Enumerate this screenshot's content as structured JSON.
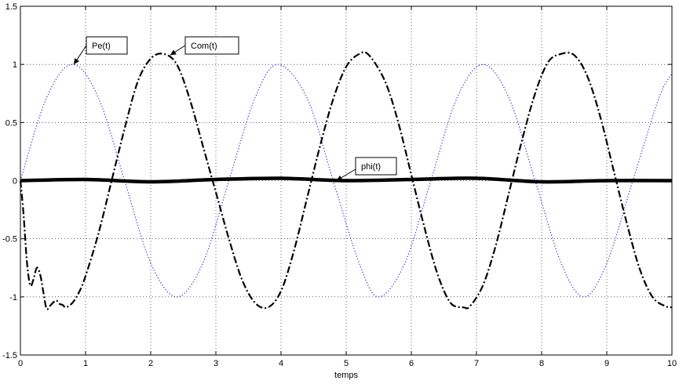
{
  "chart_data": {
    "type": "line",
    "xlabel": "temps",
    "ylabel": "",
    "title": "",
    "xlim": [
      0,
      10
    ],
    "ylim": [
      -1.5,
      1.5
    ],
    "grid": true,
    "xticks": [
      "0",
      "1",
      "2",
      "3",
      "4",
      "5",
      "6",
      "7",
      "8",
      "9",
      "10"
    ],
    "yticks": [
      "-1.5",
      "-1",
      "-0.5",
      "0",
      "0.5",
      "1",
      "1.5"
    ],
    "series": [
      {
        "name": "Pe(t)",
        "style": "dotted",
        "color": "#2a2ad4",
        "x": [
          0,
          0.4,
          0.8,
          1.2,
          1.6,
          2.0,
          2.4,
          2.8,
          3.2,
          3.6,
          3.95,
          4.4,
          4.8,
          5.2,
          5.5,
          5.9,
          6.3,
          6.7,
          7.1,
          7.5,
          7.9,
          8.3,
          8.65,
          9.0,
          9.4,
          9.8,
          10.0
        ],
        "values": [
          0.0,
          0.71,
          1.0,
          0.71,
          0.0,
          -0.71,
          -1.0,
          -0.71,
          0.0,
          0.71,
          1.0,
          0.71,
          0.0,
          -0.71,
          -1.0,
          -0.71,
          0.0,
          0.71,
          1.0,
          0.71,
          0.0,
          -0.71,
          -1.0,
          -0.71,
          0.0,
          0.71,
          0.92
        ]
      },
      {
        "name": "Com(t)",
        "style": "dash-dot",
        "color": "#000000",
        "x": [
          0.0,
          0.05,
          0.1,
          0.15,
          0.2,
          0.25,
          0.3,
          0.35,
          0.4,
          0.45,
          0.5,
          0.55,
          0.6,
          0.65,
          0.7,
          0.8,
          0.9,
          1.0,
          1.2,
          1.4,
          1.6,
          1.8,
          2.0,
          2.2,
          2.4,
          2.6,
          2.8,
          3.0,
          3.2,
          3.4,
          3.6,
          3.8,
          4.0,
          4.2,
          4.4,
          4.6,
          4.8,
          5.0,
          5.2,
          5.35,
          5.6,
          5.8,
          6.0,
          6.2,
          6.4,
          6.6,
          6.8,
          6.9,
          7.1,
          7.3,
          7.5,
          7.7,
          7.9,
          8.1,
          8.3,
          8.5,
          8.7,
          8.9,
          9.1,
          9.3,
          9.5,
          9.7,
          9.9,
          10.0
        ],
        "values": [
          0.0,
          -0.3,
          -0.7,
          -0.9,
          -0.85,
          -0.75,
          -0.8,
          -0.95,
          -1.1,
          -1.08,
          -1.05,
          -1.03,
          -1.06,
          -1.07,
          -1.09,
          -1.05,
          -0.96,
          -0.82,
          -0.45,
          0.0,
          0.45,
          0.85,
          1.05,
          1.09,
          1.0,
          0.7,
          0.3,
          -0.1,
          -0.5,
          -0.85,
          -1.05,
          -1.09,
          -0.95,
          -0.6,
          -0.15,
          0.3,
          0.7,
          0.98,
          1.09,
          1.08,
          0.85,
          0.5,
          0.05,
          -0.4,
          -0.8,
          -1.05,
          -1.09,
          -1.08,
          -0.9,
          -0.55,
          -0.1,
          0.35,
          0.75,
          1.02,
          1.09,
          1.08,
          0.9,
          0.55,
          0.1,
          -0.35,
          -0.75,
          -1.0,
          -1.08,
          -1.09
        ]
      },
      {
        "name": "phi(t)",
        "style": "solid-thick",
        "color": "#000000",
        "x": [
          0,
          1,
          2,
          3,
          4,
          5,
          6,
          7,
          8,
          9,
          10
        ],
        "values": [
          0.0,
          0.01,
          -0.01,
          0.01,
          0.02,
          0.0,
          0.01,
          0.02,
          -0.01,
          0.0,
          0.0
        ]
      }
    ],
    "annotations": [
      {
        "text": "Pe(t)",
        "x": 0.82,
        "y": 1.0
      },
      {
        "text": "Com(t)",
        "x": 2.3,
        "y": 1.08
      },
      {
        "text": "phi(t)",
        "x": 4.85,
        "y": 0.0
      }
    ]
  }
}
